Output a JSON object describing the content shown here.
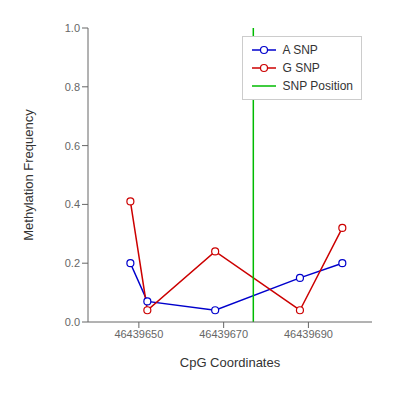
{
  "chart_data": {
    "type": "line",
    "xlabel": "CpG Coordinates",
    "ylabel": "Methylation Frequency",
    "x": [
      46439648,
      46439652,
      46439668,
      46439688,
      46439698
    ],
    "series": [
      {
        "name": "A SNP",
        "color": "#0000cc",
        "marker": "circle",
        "values": [
          0.2,
          0.07,
          0.04,
          0.15,
          0.2
        ]
      },
      {
        "name": "G SNP",
        "color": "#cc0000",
        "marker": "circle",
        "values": [
          0.41,
          0.04,
          0.24,
          0.04,
          0.32
        ]
      }
    ],
    "reference_lines": [
      {
        "name": "SNP Position",
        "x": 46439677,
        "color": "#00bb00"
      }
    ],
    "xlim": [
      46439638,
      46439705
    ],
    "xticks": [
      46439650,
      46439670,
      46439690
    ],
    "ylim": [
      0.0,
      1.0
    ],
    "yticks": [
      {
        "value": 0.0,
        "label": "0.0"
      },
      0.2,
      0.4,
      0.6,
      0.8,
      {
        "value": 1.0,
        "label": "1.0"
      }
    ],
    "grid": false,
    "legend": "upper right"
  }
}
